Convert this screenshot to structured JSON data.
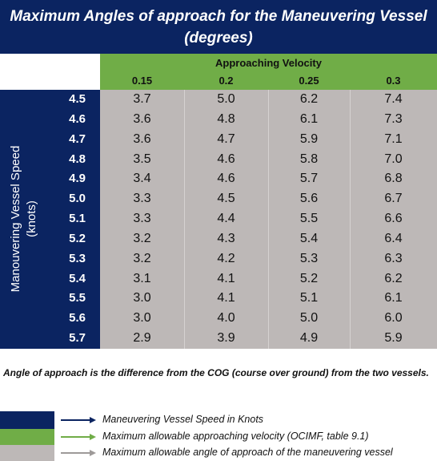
{
  "title": [
    "Maximum Angles of approach for the Maneuvering Vessel",
    "(degrees)"
  ],
  "table": {
    "column_header": "Approaching Velocity",
    "columns": [
      "0.15",
      "0.2",
      "0.25",
      "0.3"
    ],
    "row_header": [
      "Manouvering Vessel Speed",
      "(knots)"
    ],
    "rows": [
      {
        "label": "4.5",
        "values": [
          "3.7",
          "5.0",
          "6.2",
          "7.4"
        ]
      },
      {
        "label": "4.6",
        "values": [
          "3.6",
          "4.8",
          "6.1",
          "7.3"
        ]
      },
      {
        "label": "4.7",
        "values": [
          "3.6",
          "4.7",
          "5.9",
          "7.1"
        ]
      },
      {
        "label": "4.8",
        "values": [
          "3.5",
          "4.6",
          "5.8",
          "7.0"
        ]
      },
      {
        "label": "4.9",
        "values": [
          "3.4",
          "4.6",
          "5.7",
          "6.8"
        ]
      },
      {
        "label": "5.0",
        "values": [
          "3.3",
          "4.5",
          "5.6",
          "6.7"
        ]
      },
      {
        "label": "5.1",
        "values": [
          "3.3",
          "4.4",
          "5.5",
          "6.6"
        ]
      },
      {
        "label": "5.2",
        "values": [
          "3.2",
          "4.3",
          "5.4",
          "6.4"
        ]
      },
      {
        "label": "5.3",
        "values": [
          "3.2",
          "4.2",
          "5.3",
          "6.3"
        ]
      },
      {
        "label": "5.4",
        "values": [
          "3.1",
          "4.1",
          "5.2",
          "6.2"
        ]
      },
      {
        "label": "5.5",
        "values": [
          "3.0",
          "4.1",
          "5.1",
          "6.1"
        ]
      },
      {
        "label": "5.6",
        "values": [
          "3.0",
          "4.0",
          "5.0",
          "6.0"
        ]
      },
      {
        "label": "5.7",
        "values": [
          "2.9",
          "3.9",
          "4.9",
          "5.9"
        ]
      }
    ]
  },
  "note": "Angle of approach is the difference from the COG (course over ground) from the two vessels.",
  "legend": [
    {
      "color": "#0b2461",
      "arrow": "#0b2461",
      "label": "Maneuvering Vessel Speed in Knots"
    },
    {
      "color": "#70ad47",
      "arrow": "#70ad47",
      "label": "Maximum allowable approaching velocity (OCIMF, table 9.1)"
    },
    {
      "color": "#bdb8b7",
      "arrow": "#9e9a99",
      "label": "Maximum allowable angle of approach of the maneuvering vessel"
    }
  ]
}
